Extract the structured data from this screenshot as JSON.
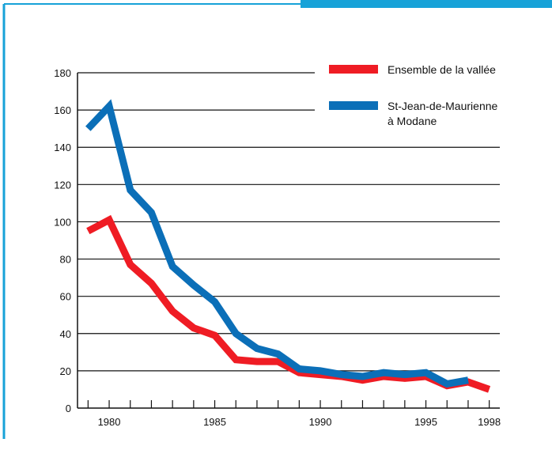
{
  "chart_data": {
    "type": "line",
    "title": "",
    "xlabel": "",
    "ylabel": "",
    "xlim": [
      1978.5,
      1998.5
    ],
    "ylim": [
      0,
      180
    ],
    "x_ticks": [
      1980,
      1985,
      1990,
      1995,
      1998
    ],
    "y_ticks": [
      0,
      20,
      40,
      60,
      80,
      100,
      120,
      140,
      160,
      180
    ],
    "grid": "horizontal",
    "legend_position": "top-right",
    "series": [
      {
        "name": "Ensemble de la vallée",
        "color": "#ef1c24",
        "x": [
          1979,
          1980,
          1981,
          1982,
          1983,
          1984,
          1985,
          1986,
          1987,
          1988,
          1989,
          1990,
          1991,
          1992,
          1993,
          1994,
          1995,
          1996,
          1997,
          1998
        ],
        "values": [
          95,
          101,
          77,
          67,
          52,
          43,
          39,
          26,
          25,
          25,
          19,
          18,
          17,
          15,
          17,
          16,
          17,
          12,
          14,
          10
        ]
      },
      {
        "name": "St-Jean-de-Maurienne à Modane",
        "color": "#0b6fb8",
        "x": [
          1979,
          1980,
          1981,
          1982,
          1983,
          1984,
          1985,
          1986,
          1987,
          1988,
          1989,
          1990,
          1991,
          1992,
          1993,
          1994,
          1995,
          1996,
          1997
        ],
        "values": [
          150,
          162,
          117,
          105,
          76,
          66,
          57,
          40,
          32,
          29,
          21,
          20,
          18,
          17,
          19,
          18,
          19,
          13,
          15
        ]
      }
    ]
  },
  "style": {
    "frame_color": "#17a2d8",
    "axis_color": "#111111",
    "grid_color": "#111111"
  }
}
